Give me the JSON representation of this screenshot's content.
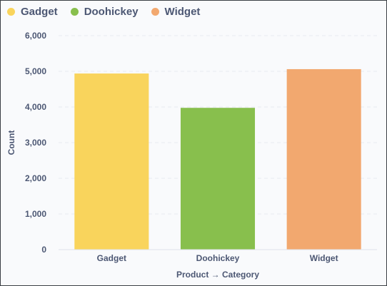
{
  "chart_data": {
    "type": "bar",
    "categories": [
      "Gadget",
      "Doohickey",
      "Widget"
    ],
    "values": [
      4939,
      3976,
      5061
    ],
    "colors": [
      "#f9d45c",
      "#88bf4d",
      "#f2a86f"
    ],
    "xlabel": "Product → Category",
    "ylabel": "Count",
    "ylim": [
      0,
      6000
    ],
    "yticks": [
      0,
      1000,
      2000,
      3000,
      4000,
      5000,
      6000
    ],
    "ytick_labels": [
      "0",
      "1,000",
      "2,000",
      "3,000",
      "4,000",
      "5,000",
      "6,000"
    ],
    "grid": true,
    "legend": {
      "position": "top-left",
      "items": [
        {
          "label": "Gadget",
          "color": "#f9d45c"
        },
        {
          "label": "Doohickey",
          "color": "#88bf4d"
        },
        {
          "label": "Widget",
          "color": "#f2a86f"
        }
      ]
    }
  }
}
